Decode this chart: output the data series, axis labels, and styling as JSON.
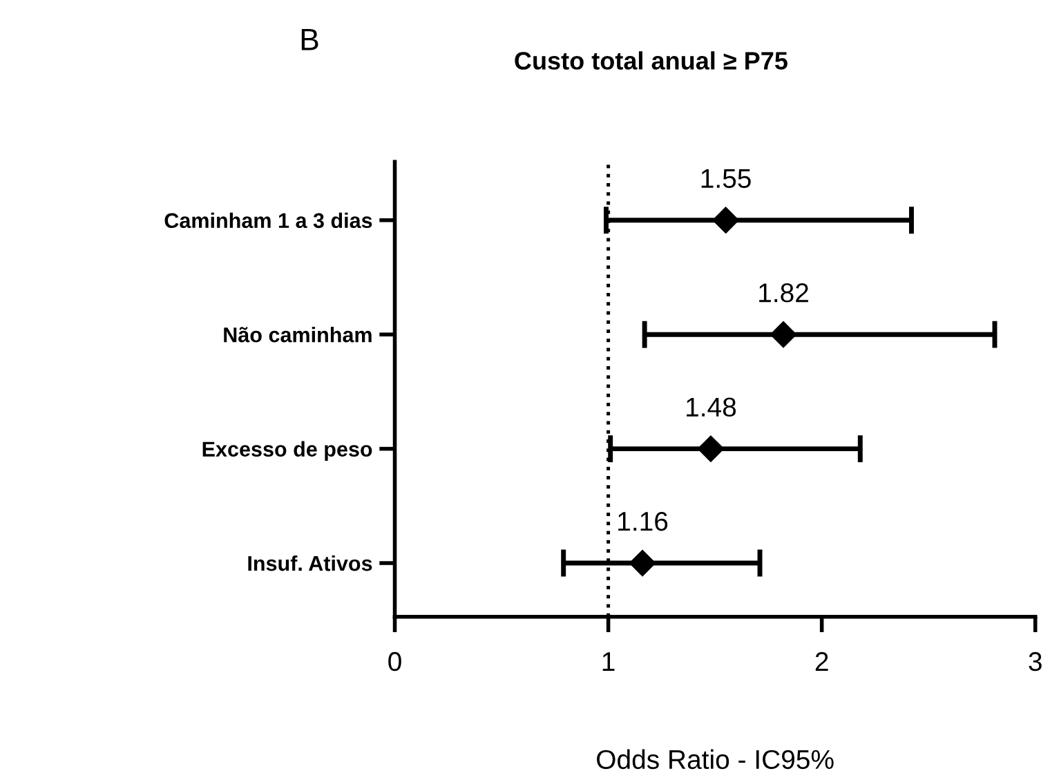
{
  "chart_data": {
    "type": "scatter",
    "orientation": "horizontal",
    "title": "Custo total anual ≥ P75",
    "xlabel": "Odds Ratio - IC95%",
    "annotations": [
      "B"
    ],
    "categories": [
      "Caminham 1 a 3 dias",
      "Não caminham",
      "Excesso de peso",
      "Insuf. Ativos"
    ],
    "values": [
      1.55,
      1.82,
      1.48,
      1.16
    ],
    "errors": [
      [
        0.99,
        2.42
      ],
      [
        1.17,
        2.81
      ],
      [
        1.01,
        2.18
      ],
      [
        0.79,
        1.71
      ]
    ],
    "value_labels": [
      "1.55",
      "1.82",
      "1.48",
      "1.16"
    ],
    "color": "#000000",
    "marker": "diamond",
    "xlim": [
      0,
      3
    ],
    "xticks": [
      0,
      1,
      2,
      3
    ],
    "grid": false,
    "legend": false,
    "ref_lines": [
      {
        "axis": "x",
        "value": 1,
        "line_style": "dotted",
        "color": "#000000"
      }
    ]
  }
}
